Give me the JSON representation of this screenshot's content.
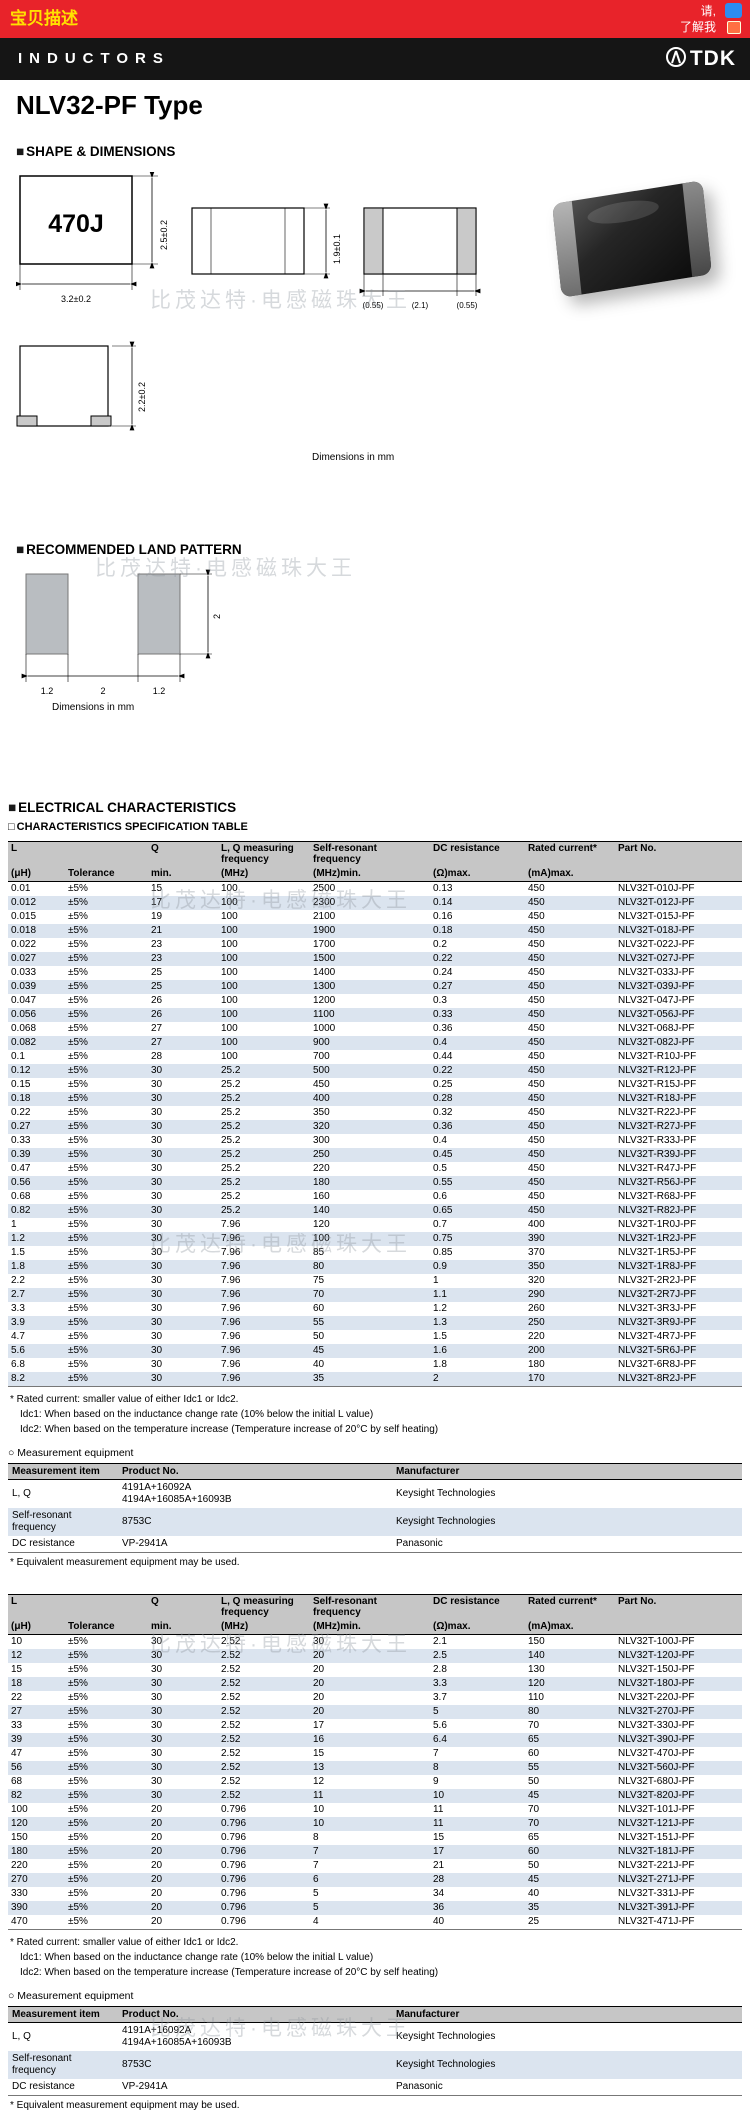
{
  "topbar": {
    "left": "宝贝描述",
    "right_line1": "请,",
    "right_line2": "了解我"
  },
  "header": {
    "category": "INDUCTORS",
    "brand": "TDK"
  },
  "title": "NLV32-PF Type",
  "watermark": "比茂达特·电感磁珠大王",
  "shape": {
    "heading": "SHAPE & DIMENSIONS",
    "marking": "470J",
    "dims": {
      "width": "3.2±0.2",
      "height": "2.5±0.2",
      "thickness": "1.9±0.1",
      "term_left": "(0.55)",
      "gap": "(2.1)",
      "term_right": "(0.55)",
      "end_height": "2.2±0.2"
    },
    "note": "Dimensions in mm"
  },
  "land": {
    "heading": "RECOMMENDED LAND PATTERN",
    "dims": {
      "pad_w": "1.2",
      "gap": "2",
      "pad_w2": "1.2",
      "pad_h": "2"
    },
    "note": "Dimensions in mm"
  },
  "elec": {
    "heading": "ELECTRICAL CHARACTERISTICS",
    "subheading": "CHARACTERISTICS SPECIFICATION TABLE",
    "col_top": [
      "L",
      "",
      "Q",
      "L, Q measuring frequency",
      "Self-resonant frequency",
      "DC resistance",
      "Rated current*",
      "Part No."
    ],
    "col_sub": [
      "(μH)",
      "Tolerance",
      "min.",
      "(MHz)",
      "(MHz)min.",
      "(Ω)max.",
      "(mA)max.",
      ""
    ],
    "footnote1": "* Rated current: smaller value of either Idc1 or Idc2.",
    "footnote2": "Idc1: When based on the inductance change rate (10% below the initial L value)",
    "footnote3": "Idc2: When based on the temperature increase (Temperature increase of 20°C by self heating)",
    "table1_rows": [
      [
        "0.01",
        "±5%",
        "15",
        "100",
        "2500",
        "0.13",
        "450",
        "NLV32T-010J-PF"
      ],
      [
        "0.012",
        "±5%",
        "17",
        "100",
        "2300",
        "0.14",
        "450",
        "NLV32T-012J-PF"
      ],
      [
        "0.015",
        "±5%",
        "19",
        "100",
        "2100",
        "0.16",
        "450",
        "NLV32T-015J-PF"
      ],
      [
        "0.018",
        "±5%",
        "21",
        "100",
        "1900",
        "0.18",
        "450",
        "NLV32T-018J-PF"
      ],
      [
        "0.022",
        "±5%",
        "23",
        "100",
        "1700",
        "0.2",
        "450",
        "NLV32T-022J-PF"
      ],
      [
        "0.027",
        "±5%",
        "23",
        "100",
        "1500",
        "0.22",
        "450",
        "NLV32T-027J-PF"
      ],
      [
        "0.033",
        "±5%",
        "25",
        "100",
        "1400",
        "0.24",
        "450",
        "NLV32T-033J-PF"
      ],
      [
        "0.039",
        "±5%",
        "25",
        "100",
        "1300",
        "0.27",
        "450",
        "NLV32T-039J-PF"
      ],
      [
        "0.047",
        "±5%",
        "26",
        "100",
        "1200",
        "0.3",
        "450",
        "NLV32T-047J-PF"
      ],
      [
        "0.056",
        "±5%",
        "26",
        "100",
        "1100",
        "0.33",
        "450",
        "NLV32T-056J-PF"
      ],
      [
        "0.068",
        "±5%",
        "27",
        "100",
        "1000",
        "0.36",
        "450",
        "NLV32T-068J-PF"
      ],
      [
        "0.082",
        "±5%",
        "27",
        "100",
        "900",
        "0.4",
        "450",
        "NLV32T-082J-PF"
      ],
      [
        "0.1",
        "±5%",
        "28",
        "100",
        "700",
        "0.44",
        "450",
        "NLV32T-R10J-PF"
      ],
      [
        "0.12",
        "±5%",
        "30",
        "25.2",
        "500",
        "0.22",
        "450",
        "NLV32T-R12J-PF"
      ],
      [
        "0.15",
        "±5%",
        "30",
        "25.2",
        "450",
        "0.25",
        "450",
        "NLV32T-R15J-PF"
      ],
      [
        "0.18",
        "±5%",
        "30",
        "25.2",
        "400",
        "0.28",
        "450",
        "NLV32T-R18J-PF"
      ],
      [
        "0.22",
        "±5%",
        "30",
        "25.2",
        "350",
        "0.32",
        "450",
        "NLV32T-R22J-PF"
      ],
      [
        "0.27",
        "±5%",
        "30",
        "25.2",
        "320",
        "0.36",
        "450",
        "NLV32T-R27J-PF"
      ],
      [
        "0.33",
        "±5%",
        "30",
        "25.2",
        "300",
        "0.4",
        "450",
        "NLV32T-R33J-PF"
      ],
      [
        "0.39",
        "±5%",
        "30",
        "25.2",
        "250",
        "0.45",
        "450",
        "NLV32T-R39J-PF"
      ],
      [
        "0.47",
        "±5%",
        "30",
        "25.2",
        "220",
        "0.5",
        "450",
        "NLV32T-R47J-PF"
      ],
      [
        "0.56",
        "±5%",
        "30",
        "25.2",
        "180",
        "0.55",
        "450",
        "NLV32T-R56J-PF"
      ],
      [
        "0.68",
        "±5%",
        "30",
        "25.2",
        "160",
        "0.6",
        "450",
        "NLV32T-R68J-PF"
      ],
      [
        "0.82",
        "±5%",
        "30",
        "25.2",
        "140",
        "0.65",
        "450",
        "NLV32T-R82J-PF"
      ],
      [
        "1",
        "±5%",
        "30",
        "7.96",
        "120",
        "0.7",
        "400",
        "NLV32T-1R0J-PF"
      ],
      [
        "1.2",
        "±5%",
        "30",
        "7.96",
        "100",
        "0.75",
        "390",
        "NLV32T-1R2J-PF"
      ],
      [
        "1.5",
        "±5%",
        "30",
        "7.96",
        "85",
        "0.85",
        "370",
        "NLV32T-1R5J-PF"
      ],
      [
        "1.8",
        "±5%",
        "30",
        "7.96",
        "80",
        "0.9",
        "350",
        "NLV32T-1R8J-PF"
      ],
      [
        "2.2",
        "±5%",
        "30",
        "7.96",
        "75",
        "1",
        "320",
        "NLV32T-2R2J-PF"
      ],
      [
        "2.7",
        "±5%",
        "30",
        "7.96",
        "70",
        "1.1",
        "290",
        "NLV32T-2R7J-PF"
      ],
      [
        "3.3",
        "±5%",
        "30",
        "7.96",
        "60",
        "1.2",
        "260",
        "NLV32T-3R3J-PF"
      ],
      [
        "3.9",
        "±5%",
        "30",
        "7.96",
        "55",
        "1.3",
        "250",
        "NLV32T-3R9J-PF"
      ],
      [
        "4.7",
        "±5%",
        "30",
        "7.96",
        "50",
        "1.5",
        "220",
        "NLV32T-4R7J-PF"
      ],
      [
        "5.6",
        "±5%",
        "30",
        "7.96",
        "45",
        "1.6",
        "200",
        "NLV32T-5R6J-PF"
      ],
      [
        "6.8",
        "±5%",
        "30",
        "7.96",
        "40",
        "1.8",
        "180",
        "NLV32T-6R8J-PF"
      ],
      [
        "8.2",
        "±5%",
        "30",
        "7.96",
        "35",
        "2",
        "170",
        "NLV32T-8R2J-PF"
      ]
    ],
    "table2_rows": [
      [
        "10",
        "±5%",
        "30",
        "2.52",
        "30",
        "2.1",
        "150",
        "NLV32T-100J-PF"
      ],
      [
        "12",
        "±5%",
        "30",
        "2.52",
        "20",
        "2.5",
        "140",
        "NLV32T-120J-PF"
      ],
      [
        "15",
        "±5%",
        "30",
        "2.52",
        "20",
        "2.8",
        "130",
        "NLV32T-150J-PF"
      ],
      [
        "18",
        "±5%",
        "30",
        "2.52",
        "20",
        "3.3",
        "120",
        "NLV32T-180J-PF"
      ],
      [
        "22",
        "±5%",
        "30",
        "2.52",
        "20",
        "3.7",
        "110",
        "NLV32T-220J-PF"
      ],
      [
        "27",
        "±5%",
        "30",
        "2.52",
        "20",
        "5",
        "80",
        "NLV32T-270J-PF"
      ],
      [
        "33",
        "±5%",
        "30",
        "2.52",
        "17",
        "5.6",
        "70",
        "NLV32T-330J-PF"
      ],
      [
        "39",
        "±5%",
        "30",
        "2.52",
        "16",
        "6.4",
        "65",
        "NLV32T-390J-PF"
      ],
      [
        "47",
        "±5%",
        "30",
        "2.52",
        "15",
        "7",
        "60",
        "NLV32T-470J-PF"
      ],
      [
        "56",
        "±5%",
        "30",
        "2.52",
        "13",
        "8",
        "55",
        "NLV32T-560J-PF"
      ],
      [
        "68",
        "±5%",
        "30",
        "2.52",
        "12",
        "9",
        "50",
        "NLV32T-680J-PF"
      ],
      [
        "82",
        "±5%",
        "30",
        "2.52",
        "11",
        "10",
        "45",
        "NLV32T-820J-PF"
      ],
      [
        "100",
        "±5%",
        "20",
        "0.796",
        "10",
        "11",
        "70",
        "NLV32T-101J-PF"
      ],
      [
        "120",
        "±5%",
        "20",
        "0.796",
        "10",
        "11",
        "70",
        "NLV32T-121J-PF"
      ],
      [
        "150",
        "±5%",
        "20",
        "0.796",
        "8",
        "15",
        "65",
        "NLV32T-151J-PF"
      ],
      [
        "180",
        "±5%",
        "20",
        "0.796",
        "7",
        "17",
        "60",
        "NLV32T-181J-PF"
      ],
      [
        "220",
        "±5%",
        "20",
        "0.796",
        "7",
        "21",
        "50",
        "NLV32T-221J-PF"
      ],
      [
        "270",
        "±5%",
        "20",
        "0.796",
        "6",
        "28",
        "45",
        "NLV32T-271J-PF"
      ],
      [
        "330",
        "±5%",
        "20",
        "0.796",
        "5",
        "34",
        "40",
        "NLV32T-331J-PF"
      ],
      [
        "390",
        "±5%",
        "20",
        "0.796",
        "5",
        "36",
        "35",
        "NLV32T-391J-PF"
      ],
      [
        "470",
        "±5%",
        "20",
        "0.796",
        "4",
        "40",
        "25",
        "NLV32T-471J-PF"
      ]
    ],
    "measurement": {
      "heading": "Measurement equipment",
      "headers": [
        "Measurement item",
        "Product No.",
        "Manufacturer"
      ],
      "rows": [
        [
          "L, Q",
          "4191A+16092A\n4194A+16085A+16093B",
          "Keysight Technologies"
        ],
        [
          "Self-resonant frequency",
          "8753C",
          "Keysight Technologies"
        ],
        [
          "DC resistance",
          "VP-2941A",
          "Panasonic"
        ]
      ],
      "note": "* Equivalent measurement equipment may be used."
    }
  }
}
